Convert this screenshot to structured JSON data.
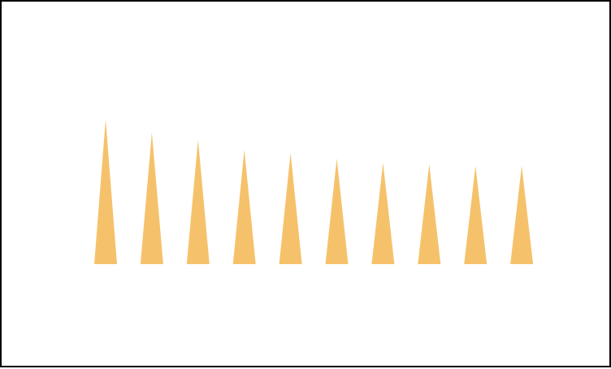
{
  "chart_data": {
    "type": "bar",
    "mark_shape": "triangle",
    "color": "#F5C26B",
    "background": "#ffffff",
    "border_color": "#000000",
    "title": "",
    "xlabel": "",
    "ylabel": "",
    "legend": "none",
    "grid": false,
    "axes_visible": false,
    "ylim": [
      0,
      1
    ],
    "values": [
      1.0,
      0.91,
      0.86,
      0.79,
      0.77,
      0.73,
      0.7,
      0.69,
      0.68,
      0.68
    ]
  }
}
